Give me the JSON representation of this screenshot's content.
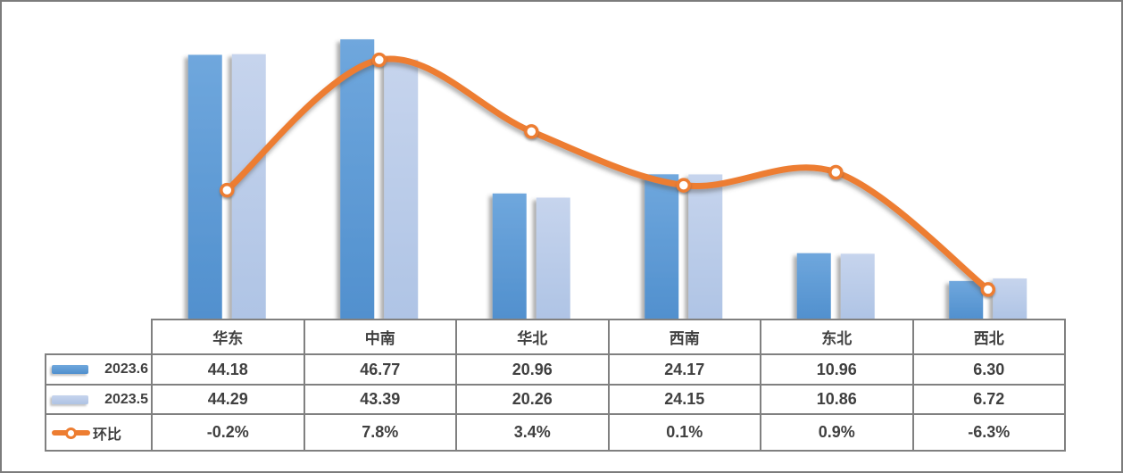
{
  "frame": {
    "background": "#ffffff",
    "border_color": "#7c7c7c"
  },
  "chart_data": {
    "type": "combo-bar-line",
    "categories": [
      "华东",
      "中南",
      "华北",
      "西南",
      "东北",
      "西北"
    ],
    "bar_series": [
      {
        "name": "2023.6",
        "values": [
          44.18,
          46.77,
          20.96,
          24.17,
          10.96,
          6.3
        ],
        "color": "#5b9bd5"
      },
      {
        "name": "2023.5",
        "values": [
          44.29,
          43.39,
          20.26,
          24.15,
          10.86,
          6.72
        ],
        "color": "#b4c7e7"
      }
    ],
    "line_series": {
      "name": "环比",
      "values_pct": [
        -0.2,
        7.8,
        3.4,
        0.1,
        0.9,
        -6.3
      ],
      "labels": [
        "-0.2%",
        "7.8%",
        "3.4%",
        "0.1%",
        "0.9%",
        "-6.3%"
      ],
      "color": "#ed7d31",
      "marker": "white-circle-orange-ring",
      "smooth": true
    },
    "axes_visible": false,
    "gridlines": false,
    "legend_position": "data-table-left-column",
    "value_labels_location": "data-table"
  },
  "table": {
    "columns": [
      "华东",
      "中南",
      "华北",
      "西南",
      "东北",
      "西北"
    ],
    "rows": [
      {
        "legend": "2023.6",
        "swatch": "bar-dark",
        "cells": [
          "44.18",
          "46.77",
          "20.96",
          "24.17",
          "10.96",
          "6.30"
        ]
      },
      {
        "legend": "2023.5",
        "swatch": "bar-light",
        "cells": [
          "44.29",
          "43.39",
          "20.26",
          "24.15",
          "10.86",
          "6.72"
        ]
      },
      {
        "legend": "环比",
        "swatch": "line-marker",
        "cells": [
          "-0.2%",
          "7.8%",
          "3.4%",
          "0.1%",
          "0.9%",
          "-6.3%"
        ]
      }
    ]
  }
}
